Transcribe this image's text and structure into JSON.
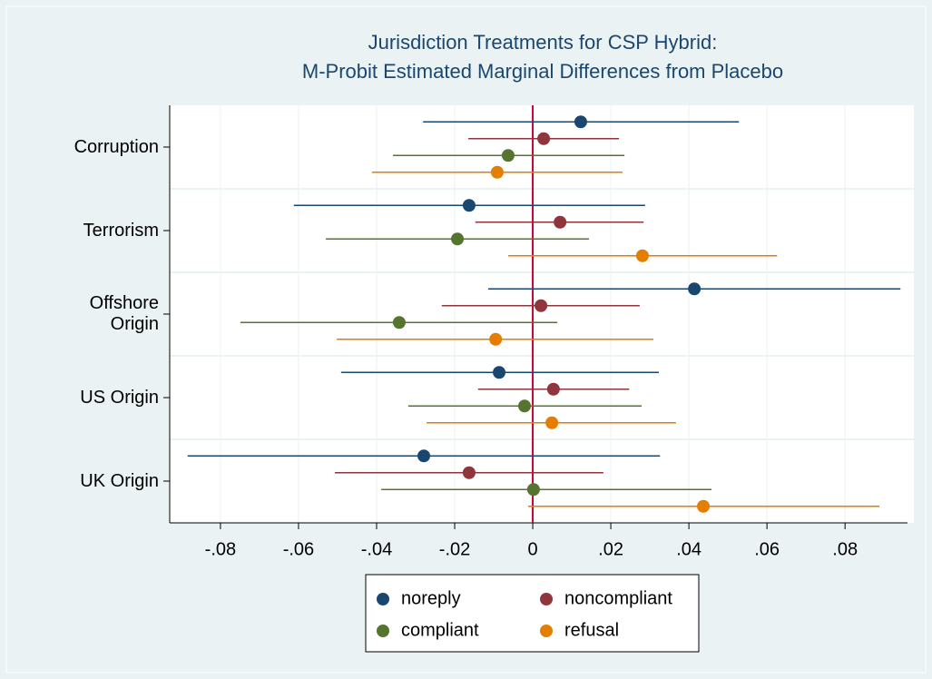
{
  "chart_data": {
    "type": "dot_ci",
    "title": [
      "Jurisdiction Treatments for CSP Hybrid:",
      "M-Probit Estimated Marginal Differences from Placebo"
    ],
    "categories": [
      "Corruption",
      "Terrorism",
      "Offshore Origin",
      "US Origin",
      "UK Origin"
    ],
    "series": [
      {
        "name": "noreply",
        "color": "#1a476f",
        "values": [
          0.0123,
          -0.0163,
          0.0414,
          -0.0086,
          -0.0279
        ],
        "lower": [
          -0.0281,
          -0.0612,
          -0.0114,
          -0.0491,
          -0.0884
        ],
        "upper": [
          0.0528,
          0.0288,
          0.0942,
          0.0323,
          0.0326
        ]
      },
      {
        "name": "noncompliant",
        "color": "#90353b",
        "values": [
          0.0028,
          0.007,
          0.0021,
          0.0053,
          -0.0163
        ],
        "lower": [
          -0.0165,
          -0.0147,
          -0.0233,
          -0.014,
          -0.0507
        ],
        "upper": [
          0.0221,
          0.0284,
          0.0274,
          0.0247,
          0.0181
        ]
      },
      {
        "name": "compliant",
        "color": "#55752f",
        "values": [
          -0.0063,
          -0.0193,
          -0.0342,
          -0.0021,
          0.0002
        ],
        "lower": [
          -0.0358,
          -0.053,
          -0.0749,
          -0.0319,
          -0.0388
        ],
        "upper": [
          0.0235,
          0.0144,
          0.0063,
          0.0279,
          0.0458
        ]
      },
      {
        "name": "refusal",
        "color": "#e37e00",
        "values": [
          -0.0091,
          0.0281,
          -0.0095,
          0.0049,
          0.0437
        ],
        "lower": [
          -0.0412,
          -0.0063,
          -0.0502,
          -0.0272,
          -0.0012
        ],
        "upper": [
          0.023,
          0.0626,
          0.0309,
          0.0367,
          0.0888
        ]
      }
    ],
    "xlim": [
      -0.093,
      0.096
    ],
    "xticks": [
      {
        "value": -0.08,
        "label": "-.08"
      },
      {
        "value": -0.06,
        "label": "-.06"
      },
      {
        "value": -0.04,
        "label": "-.04"
      },
      {
        "value": -0.02,
        "label": "-.02"
      },
      0,
      {
        "value": 0.02,
        "label": ".02"
      },
      {
        "value": 0.04,
        "label": ".04"
      },
      {
        "value": 0.06,
        "label": ".06"
      },
      {
        "value": 0.08,
        "label": ".08"
      }
    ],
    "xline": 0,
    "xline_color": "#c10534",
    "grid": true
  }
}
